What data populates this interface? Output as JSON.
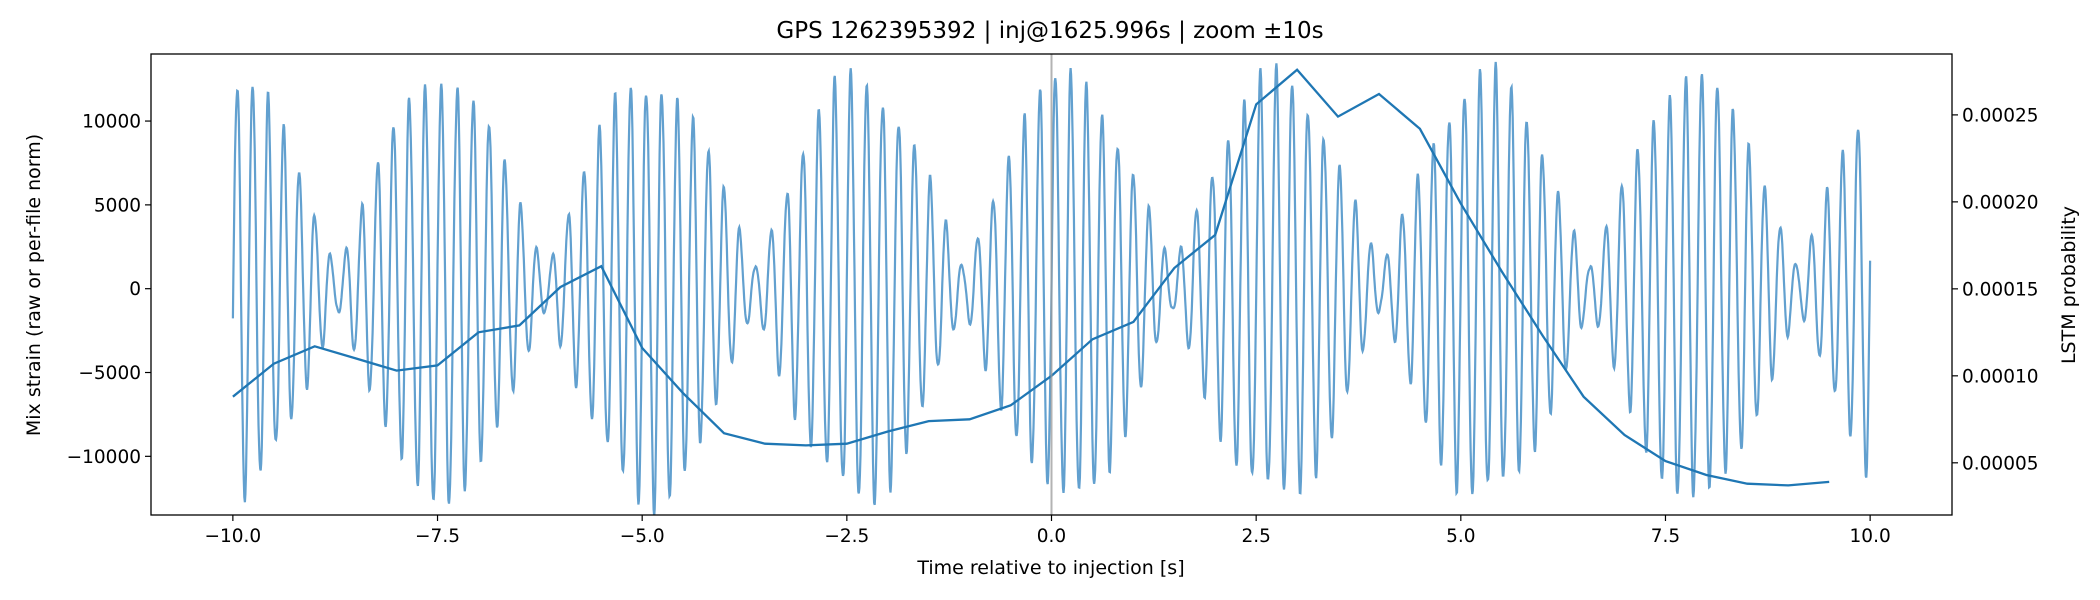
{
  "chart_data": {
    "type": "line",
    "title": "GPS 1262395392 | inj@1625.996s | zoom ±10s",
    "xlabel": "Time relative to injection [s]",
    "ylabel": "Mix strain (raw or per-file norm)",
    "y2label": "LSTM probability",
    "xlim": [
      -11.0,
      11.0
    ],
    "ylim": [
      -13500,
      14000
    ],
    "y2lim": [
      2e-05,
      0.000285
    ],
    "x_ticks": [
      -10.0,
      -7.5,
      -5.0,
      -2.5,
      0.0,
      2.5,
      5.0,
      7.5,
      10.0
    ],
    "x_tick_labels": [
      "−10.0",
      "−7.5",
      "−5.0",
      "−2.5",
      "0.0",
      "2.5",
      "5.0",
      "7.5",
      "10.0"
    ],
    "y_ticks": [
      -10000,
      -5000,
      0,
      5000,
      10000
    ],
    "y_tick_labels": [
      "−10000",
      "−5000",
      "0",
      "5000",
      "10000"
    ],
    "y2_ticks": [
      5e-05,
      0.0001,
      0.00015,
      0.0002,
      0.00025
    ],
    "y2_tick_labels": [
      "0.00005",
      "0.00010",
      "0.00015",
      "0.00020",
      "0.00025"
    ],
    "injection_marker_x": 0.0,
    "series": [
      {
        "name": "Mix strain",
        "axis": "left",
        "color": "#5a9bcc",
        "description_free": true,
        "x_range": [
          -10.0,
          10.0
        ],
        "carrier_cycles_per_s": 5.2,
        "envelope_period_s": 2.55,
        "peak_amplitude": 12500,
        "min_amplitude": 1200
      },
      {
        "name": "LSTM probability",
        "axis": "right",
        "color": "#1f77b4",
        "x": [
          -10.0,
          -9.5,
          -9.0,
          -8.5,
          -8.0,
          -7.5,
          -7.0,
          -6.5,
          -6.0,
          -5.5,
          -5.0,
          -4.5,
          -4.0,
          -3.5,
          -3.0,
          -2.5,
          -2.0,
          -1.5,
          -1.0,
          -0.5,
          0.0,
          0.5,
          1.0,
          1.5,
          2.0,
          2.5,
          3.0,
          3.5,
          4.0,
          4.5,
          5.0,
          5.5,
          6.0,
          6.5,
          7.0,
          7.5,
          8.0,
          8.5,
          9.0,
          9.5
        ],
        "y": [
          8.8e-05,
          0.000107,
          0.000117,
          0.00011,
          0.000103,
          0.000106,
          0.000125,
          0.000129,
          0.000151,
          0.000163,
          0.000116,
          9e-05,
          6.7e-05,
          6.1e-05,
          6e-05,
          6.1e-05,
          6.8e-05,
          7.4e-05,
          7.5e-05,
          8.3e-05,
          0.0001,
          0.000121,
          0.000131,
          0.000162,
          0.000181,
          0.000256,
          0.000276,
          0.000249,
          0.000262,
          0.000242,
          0.000199,
          0.00016,
          0.000123,
          8.8e-05,
          6.6e-05,
          5.1e-05,
          4.3e-05,
          3.8e-05,
          3.7e-05,
          3.9e-05
        ]
      }
    ]
  }
}
